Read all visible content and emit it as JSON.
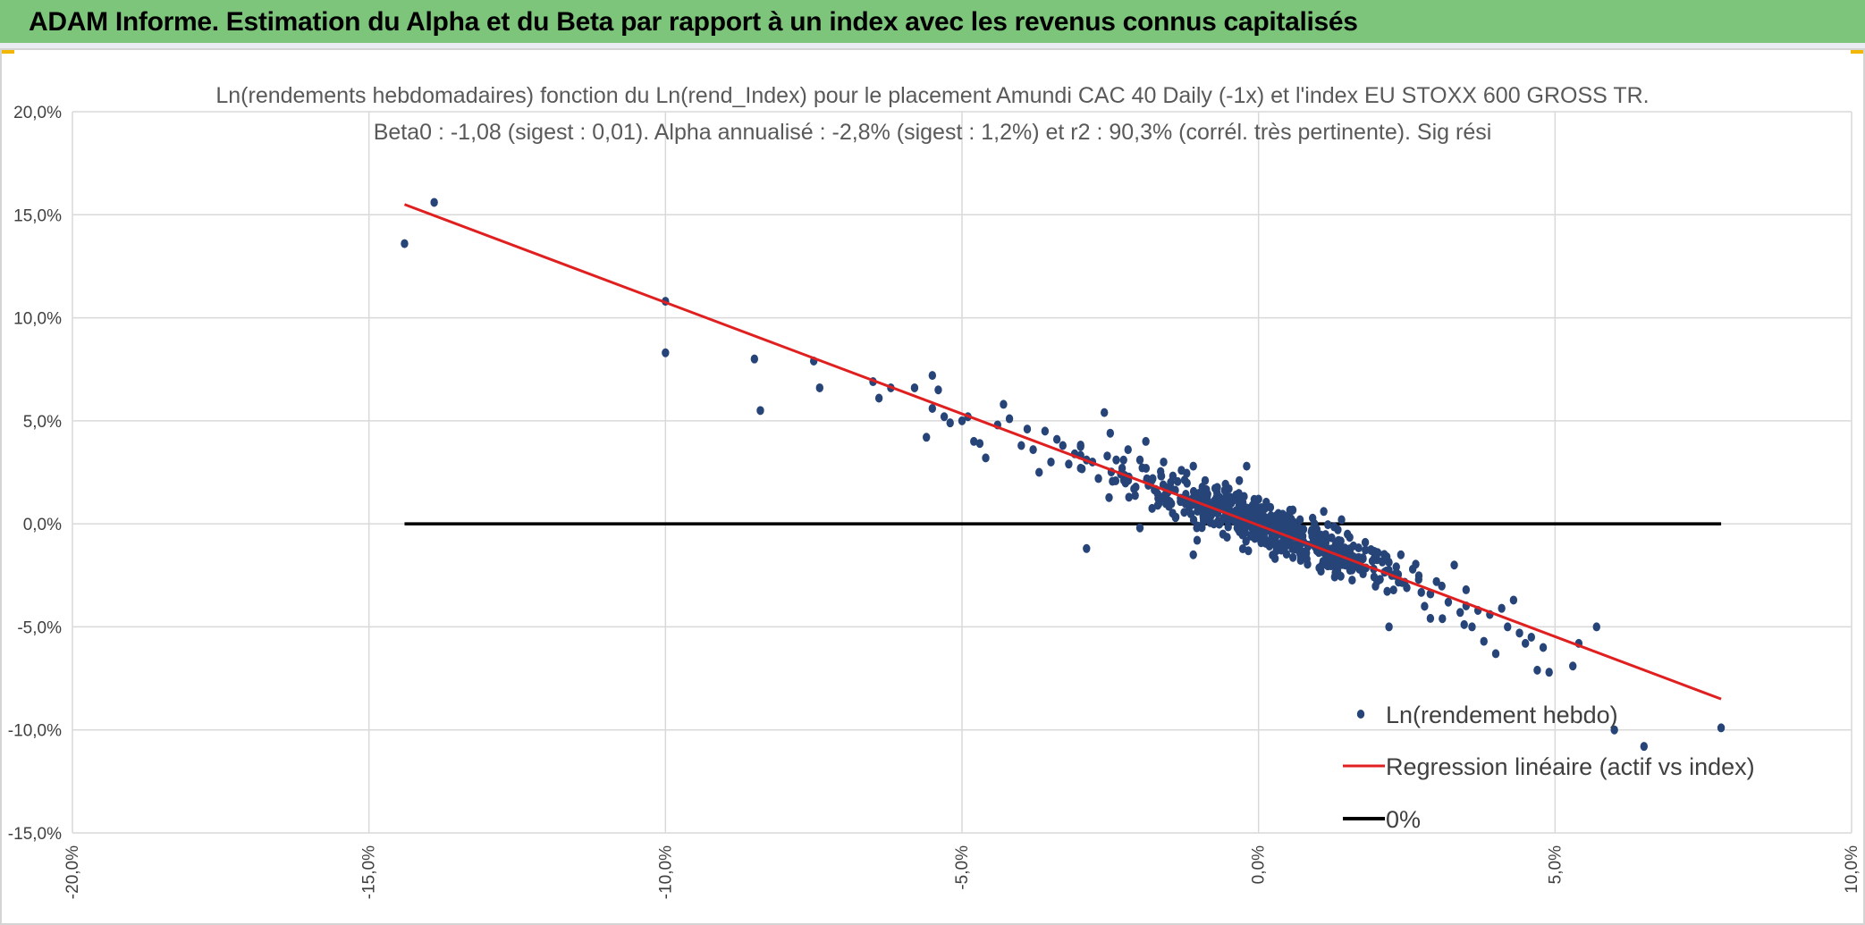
{
  "banner": {
    "title": "ADAM Informe. Estimation du Alpha et du Beta par rapport à un index avec les revenus connus capitalisés",
    "background_color": "#7cc57a"
  },
  "chart_data": {
    "type": "scatter",
    "title": "Ln(rendements hebdomadaires) fonction du Ln(rend_Index) pour le placement Amundi CAC 40 Daily (-1x) et l'index EU STOXX 600 GROSS TR.",
    "subtitle": "Beta0 : -1,08 (sigest : 0,01). Alpha annualisé : -2,8% (sigest : 1,2%) et r2 : 90,3% (corrél. très pertinente). Sig rési",
    "xlabel": "",
    "ylabel": "",
    "xlim": [
      -0.2,
      0.1
    ],
    "ylim": [
      -0.15,
      0.2
    ],
    "x_ticks": [
      "-20,0%",
      "-15,0%",
      "-10,0%",
      "-5,0%",
      "0,0%",
      "5,0%",
      "10,0%"
    ],
    "y_ticks": [
      "20,0%",
      "15,0%",
      "10,0%",
      "5,0%",
      "0,0%",
      "-5,0%",
      "-10,0%",
      "-15,0%"
    ],
    "grid": true,
    "legend_position": "bottom-right",
    "series": [
      {
        "name": "Ln(rendement hebdo)",
        "kind": "scatter",
        "color": "#264478",
        "points": [
          [
            -0.144,
            0.136
          ],
          [
            -0.139,
            0.156
          ],
          [
            -0.1,
            0.083
          ],
          [
            -0.1,
            0.108
          ],
          [
            -0.085,
            0.08
          ],
          [
            -0.084,
            0.055
          ],
          [
            -0.075,
            0.079
          ],
          [
            -0.074,
            0.066
          ],
          [
            -0.065,
            0.069
          ],
          [
            -0.064,
            0.061
          ],
          [
            -0.062,
            0.066
          ],
          [
            -0.058,
            0.066
          ],
          [
            -0.055,
            0.072
          ],
          [
            -0.055,
            0.056
          ],
          [
            -0.054,
            0.065
          ],
          [
            -0.053,
            0.052
          ],
          [
            -0.052,
            0.049
          ],
          [
            -0.05,
            0.05
          ],
          [
            -0.049,
            0.052
          ],
          [
            -0.056,
            0.042
          ],
          [
            -0.048,
            0.04
          ],
          [
            -0.047,
            0.039
          ],
          [
            -0.046,
            0.032
          ],
          [
            -0.044,
            0.048
          ],
          [
            -0.043,
            0.058
          ],
          [
            -0.042,
            0.051
          ],
          [
            -0.04,
            0.038
          ],
          [
            -0.039,
            0.046
          ],
          [
            -0.038,
            0.036
          ],
          [
            -0.037,
            0.025
          ],
          [
            -0.036,
            0.045
          ],
          [
            -0.035,
            0.03
          ],
          [
            -0.034,
            0.041
          ],
          [
            -0.033,
            0.038
          ],
          [
            -0.032,
            0.029
          ],
          [
            -0.031,
            0.034
          ],
          [
            -0.03,
            0.027
          ],
          [
            -0.029,
            0.031
          ],
          [
            -0.029,
            -0.012
          ],
          [
            -0.028,
            0.03
          ],
          [
            -0.027,
            0.022
          ],
          [
            -0.026,
            0.054
          ],
          [
            -0.025,
            0.044
          ],
          [
            -0.024,
            0.031
          ],
          [
            -0.023,
            0.027
          ],
          [
            -0.022,
            0.036
          ],
          [
            -0.021,
            0.017
          ],
          [
            -0.02,
            0.031
          ],
          [
            -0.019,
            0.04
          ],
          [
            -0.02,
            -0.002
          ],
          [
            -0.018,
            0.021
          ],
          [
            -0.017,
            0.009
          ],
          [
            -0.016,
            0.03
          ],
          [
            -0.015,
            0.018
          ],
          [
            -0.014,
            0.003
          ],
          [
            -0.013,
            0.026
          ],
          [
            -0.012,
            0.012
          ],
          [
            -0.011,
            -0.015
          ],
          [
            -0.011,
            0.028
          ],
          [
            -0.01,
            0.007
          ],
          [
            -0.009,
            0.021
          ],
          [
            -0.008,
            0.004
          ],
          [
            -0.007,
            0.015
          ],
          [
            -0.006,
            -0.005
          ],
          [
            -0.005,
            0.017
          ],
          [
            -0.004,
            0.012
          ],
          [
            -0.003,
            0.002
          ],
          [
            -0.002,
            0.028
          ],
          [
            -0.001,
            0.009
          ],
          [
            0.0,
            0.012
          ],
          [
            0.001,
            -0.004
          ],
          [
            0.002,
            0.008
          ],
          [
            0.003,
            0.001
          ],
          [
            0.004,
            -0.009
          ],
          [
            0.005,
            0.004
          ],
          [
            0.006,
            -0.012
          ],
          [
            0.007,
            0.002
          ],
          [
            0.008,
            -0.015
          ],
          [
            0.009,
            -0.003
          ],
          [
            0.01,
            -0.008
          ],
          [
            0.011,
            0.006
          ],
          [
            0.012,
            -0.02
          ],
          [
            0.013,
            -0.01
          ],
          [
            0.014,
            0.002
          ],
          [
            0.015,
            -0.005
          ],
          [
            0.016,
            -0.016
          ],
          [
            0.017,
            -0.022
          ],
          [
            0.018,
            -0.009
          ],
          [
            0.019,
            -0.013
          ],
          [
            0.02,
            -0.028
          ],
          [
            0.021,
            -0.018
          ],
          [
            0.022,
            -0.05
          ],
          [
            0.023,
            -0.025
          ],
          [
            0.024,
            -0.015
          ],
          [
            0.025,
            -0.031
          ],
          [
            0.026,
            -0.022
          ],
          [
            0.027,
            -0.027
          ],
          [
            0.028,
            -0.04
          ],
          [
            0.029,
            -0.034
          ],
          [
            0.03,
            -0.028
          ],
          [
            0.031,
            -0.046
          ],
          [
            0.032,
            -0.038
          ],
          [
            0.033,
            -0.02
          ],
          [
            0.034,
            -0.043
          ],
          [
            0.035,
            -0.032
          ],
          [
            0.036,
            -0.05
          ],
          [
            0.037,
            -0.042
          ],
          [
            0.038,
            -0.057
          ],
          [
            0.039,
            -0.044
          ],
          [
            0.04,
            -0.063
          ],
          [
            0.041,
            -0.041
          ],
          [
            0.042,
            -0.05
          ],
          [
            0.043,
            -0.037
          ],
          [
            0.044,
            -0.053
          ],
          [
            0.045,
            -0.058
          ],
          [
            0.046,
            -0.055
          ],
          [
            0.047,
            -0.071
          ],
          [
            0.048,
            -0.06
          ],
          [
            0.049,
            -0.072
          ],
          [
            0.053,
            -0.069
          ],
          [
            0.054,
            -0.058
          ],
          [
            0.057,
            -0.05
          ],
          [
            0.06,
            -0.1
          ],
          [
            0.065,
            -0.108
          ],
          [
            0.078,
            -0.099
          ]
        ]
      },
      {
        "name": "Regression linéaire (actif vs index)",
        "kind": "line",
        "color": "#e02020",
        "points": [
          [
            -0.144,
            0.155
          ],
          [
            0.078,
            -0.085
          ]
        ]
      },
      {
        "name": "0%",
        "kind": "line",
        "color": "#000000",
        "points": [
          [
            -0.144,
            0.0
          ],
          [
            0.078,
            0.0
          ]
        ]
      }
    ]
  }
}
